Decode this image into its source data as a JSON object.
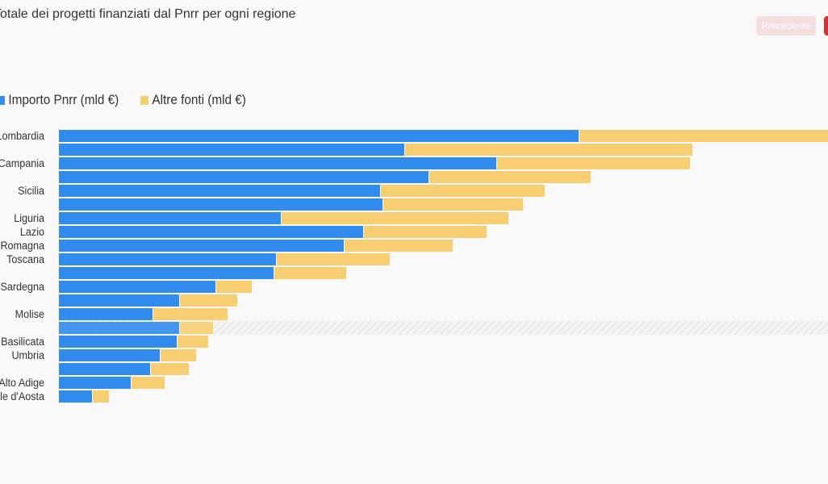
{
  "title": "Totale dei progetti finanziati dal Pnrr per ogni regione",
  "nav": {
    "prev_label": "Precedente"
  },
  "colors": {
    "pnrr": "#318ced",
    "altre": "#f7cf72",
    "next_button": "#d0323a"
  },
  "chart_data": {
    "type": "bar",
    "orientation": "horizontal",
    "stacked": true,
    "legend_position": "top-left",
    "grid": false,
    "categories": [
      "Lombardia",
      "",
      "Campania",
      "",
      "Sicilia",
      "",
      "Liguria",
      "Lazio",
      "Emilia-Romagna",
      "Toscana",
      "",
      "Sardegna",
      "",
      "Molise",
      "",
      "Basilicata",
      "Umbria",
      "",
      "Trentino Alto Adige",
      "Valle d'Aosta"
    ],
    "series": [
      {
        "name": "Importo Pnrr (mld €)",
        "values": [
          21.5,
          14.3,
          18.1,
          15.3,
          13.3,
          13.4,
          9.2,
          12.6,
          11.8,
          9.0,
          8.9,
          6.5,
          5.0,
          3.9,
          5.0,
          4.9,
          4.2,
          3.8,
          3.0,
          1.4
        ]
      },
      {
        "name": "Altre fonti (mld €)",
        "values": [
          12.0,
          11.9,
          8.0,
          6.7,
          6.8,
          5.8,
          9.4,
          5.1,
          4.5,
          4.7,
          3.0,
          1.5,
          2.4,
          3.1,
          1.4,
          1.3,
          1.5,
          1.6,
          1.4,
          0.7
        ]
      }
    ],
    "highlighted_index": 14
  }
}
